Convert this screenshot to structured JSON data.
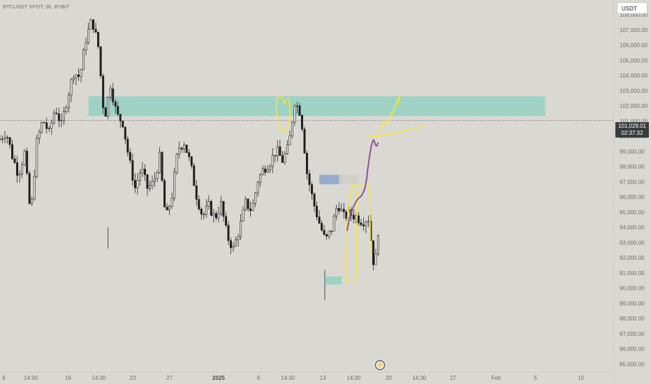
{
  "header": {
    "symbol_line": "BTCUSDT SPOT, 3h, BYBIT"
  },
  "currency_badge": "USDT",
  "price_label": {
    "price": "101,029.01",
    "countdown": "02:37:32"
  },
  "colors": {
    "background": "#d9d8d3",
    "candle": "#1f1f1f",
    "zone": "#94d1c1",
    "highlight": "#f5ea32",
    "purple": "#8a5a8c",
    "blue_zone": "#8aa4c7"
  },
  "chart_data": {
    "type": "candlestick",
    "y_tick_labels": [
      "108,000.00",
      "107,000.00",
      "106,000.00",
      "105,000.00",
      "104,000.00",
      "103,000.00",
      "102,000.00",
      "101,000.00",
      "100,000.00",
      "99,000.00",
      "98,000.00",
      "97,000.00",
      "96,000.00",
      "95,000.00",
      "94,000.00",
      "93,000.00",
      "92,000.00",
      "91,000.00",
      "90,000.00",
      "89,000.00",
      "88,000.00",
      "87,000.00",
      "86,000.00",
      "85,000.00"
    ],
    "ylim": [
      84700,
      108600
    ],
    "x_tick_labels": [
      {
        "label": "9",
        "x": 0.6
      },
      {
        "label": "14:30",
        "x": 5.0
      },
      {
        "label": "16",
        "x": 11.1
      },
      {
        "label": "14:30",
        "x": 16.1
      },
      {
        "label": "23",
        "x": 21.6
      },
      {
        "label": "27",
        "x": 27.6
      },
      {
        "label": "2025",
        "x": 35.6,
        "bold": true
      },
      {
        "label": "6",
        "x": 42.1
      },
      {
        "label": "14:30",
        "x": 46.9
      },
      {
        "label": "13",
        "x": 52.6
      },
      {
        "label": "14:30",
        "x": 57.6
      },
      {
        "label": "20",
        "x": 63.3
      },
      {
        "label": "14:30",
        "x": 68.3
      },
      {
        "label": "27",
        "x": 73.8
      },
      {
        "label": "Feb",
        "x": 80.8
      },
      {
        "label": "5",
        "x": 87.2
      },
      {
        "label": "10",
        "x": 94.6
      }
    ],
    "price_path": [
      [
        0,
        99800
      ],
      [
        1,
        100300
      ],
      [
        2,
        98700
      ],
      [
        3,
        97500
      ],
      [
        4,
        98900
      ],
      [
        5,
        94700
      ],
      [
        6,
        99600
      ],
      [
        7,
        101100
      ],
      [
        8,
        100200
      ],
      [
        9,
        101900
      ],
      [
        10,
        100700
      ],
      [
        11,
        102600
      ],
      [
        12,
        104200
      ],
      [
        13,
        103900
      ],
      [
        14,
        106400
      ],
      [
        15,
        107700
      ],
      [
        16,
        105900
      ],
      [
        17,
        101100
      ],
      [
        18,
        103400
      ],
      [
        19,
        101400
      ],
      [
        20,
        100900
      ],
      [
        21,
        98500
      ],
      [
        22,
        96600
      ],
      [
        23,
        97900
      ],
      [
        24,
        96600
      ],
      [
        25,
        96900
      ],
      [
        26,
        98600
      ],
      [
        27,
        94500
      ],
      [
        28,
        96100
      ],
      [
        29,
        99200
      ],
      [
        30,
        99600
      ],
      [
        31,
        98200
      ],
      [
        32,
        96100
      ],
      [
        33,
        94700
      ],
      [
        34,
        95400
      ],
      [
        35,
        94600
      ],
      [
        36,
        95500
      ],
      [
        37,
        93400
      ],
      [
        38,
        92600
      ],
      [
        39,
        93900
      ],
      [
        40,
        95600
      ],
      [
        41,
        95100
      ],
      [
        42,
        97100
      ],
      [
        43,
        97900
      ],
      [
        44,
        98300
      ],
      [
        45,
        99100
      ],
      [
        46,
        98400
      ],
      [
        47,
        99300
      ],
      [
        48,
        102300
      ],
      [
        49,
        101500
      ],
      [
        50,
        97600
      ],
      [
        51,
        95700
      ],
      [
        52,
        94300
      ],
      [
        53,
        93100
      ],
      [
        54,
        93900
      ],
      [
        55,
        95600
      ],
      [
        56,
        94700
      ],
      [
        57,
        94900
      ],
      [
        58,
        94700
      ],
      [
        59,
        94400
      ],
      [
        60,
        94600
      ],
      [
        61,
        91100
      ],
      [
        62,
        95600
      ],
      [
        63,
        97200
      ],
      [
        64,
        96900
      ],
      [
        65,
        99700
      ],
      [
        66,
        100500
      ],
      [
        67,
        97600
      ],
      [
        68,
        100400
      ],
      [
        69,
        100900
      ],
      [
        70,
        102200
      ]
    ],
    "zones": [
      {
        "name": "supply-zone",
        "x0": 14.4,
        "x1": 88.8,
        "y0": 101330,
        "y1": 102630,
        "color": "#94d1c1"
      },
      {
        "name": "demand-zone-low",
        "x0": 53.0,
        "x1": 55.6,
        "y0": 90240,
        "y1": 90770,
        "color": "#94d1c1"
      },
      {
        "name": "blue-zone",
        "x0": 52.0,
        "x1": 55.6,
        "y0": 96840,
        "y1": 97460,
        "color": "#8aa4c7"
      },
      {
        "name": "gray-zone",
        "x0": 55.2,
        "x1": 58.4,
        "y0": 96840,
        "y1": 97460,
        "color": "#cfcfc9"
      }
    ],
    "current_price": 101029.01
  }
}
